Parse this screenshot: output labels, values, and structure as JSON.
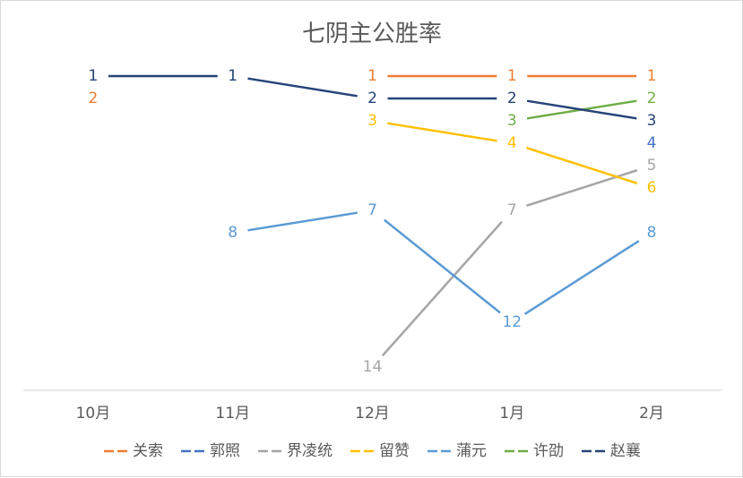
{
  "chart_data": {
    "type": "line",
    "title": "七阴主公胜率",
    "xlabel": "",
    "ylabel": "",
    "categories": [
      "10月",
      "11月",
      "12月",
      "1月",
      "2月"
    ],
    "y_axis_inverted": true,
    "ylim": [
      1,
      14
    ],
    "grid": false,
    "legend_position": "bottom",
    "series": [
      {
        "name": "关索",
        "color": "#ED7D31",
        "values": [
          2,
          null,
          1,
          1,
          1
        ]
      },
      {
        "name": "郭照",
        "color": "#4472C4",
        "values": [
          null,
          null,
          null,
          null,
          4
        ]
      },
      {
        "name": "界凌统",
        "color": "#A5A5A5",
        "values": [
          null,
          null,
          14,
          7,
          5
        ]
      },
      {
        "name": "留赞",
        "color": "#FFC000",
        "values": [
          null,
          null,
          3,
          4,
          6
        ]
      },
      {
        "name": "蒲元",
        "color": "#5B9BD5",
        "values": [
          null,
          8,
          7,
          12,
          8
        ]
      },
      {
        "name": "许劭",
        "color": "#70AD47",
        "values": [
          null,
          null,
          null,
          3,
          2
        ]
      },
      {
        "name": "赵襄",
        "color": "#264478",
        "values": [
          1,
          1,
          2,
          2,
          3
        ]
      }
    ]
  }
}
